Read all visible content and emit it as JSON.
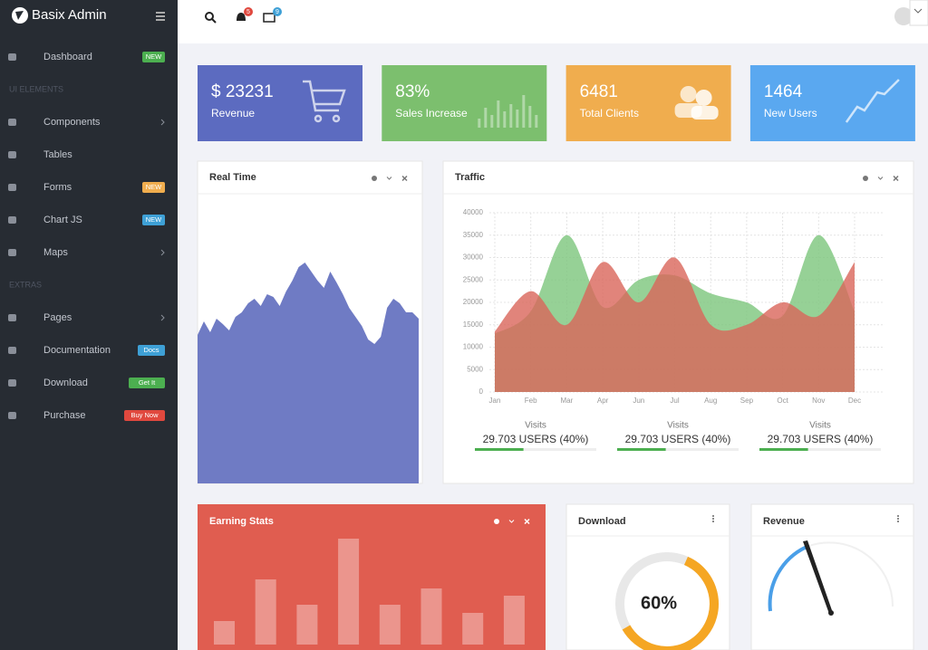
{
  "sidebar": {
    "brand": "Basix Admin",
    "items": [
      {
        "label": "Dashboard",
        "badge": "NEW",
        "badge_color": "#4caf50"
      },
      {
        "heading": "UI ELEMENTS"
      },
      {
        "label": "Components",
        "submenu": true
      },
      {
        "label": "Tables"
      },
      {
        "label": "Forms",
        "badge": "NEW",
        "badge_color": "#f0ad4e"
      },
      {
        "label": "Chart JS",
        "badge": "NEW",
        "badge_color": "#3ea0d6"
      },
      {
        "label": "Maps",
        "submenu": true
      },
      {
        "heading": "EXTRAS"
      },
      {
        "label": "Pages",
        "submenu": true
      },
      {
        "label": "Documentation",
        "badge": "Docs",
        "badge_color": "#3ea0d6"
      },
      {
        "label": "Download",
        "badge": "Get It",
        "badge_color": "#4caf50"
      },
      {
        "label": "Purchase",
        "badge": "Buy Now",
        "badge_color": "#e0483e"
      }
    ]
  },
  "topbar": {
    "notifications": "5",
    "messages": "9"
  },
  "cards": [
    {
      "value": "$ 23231",
      "label": "Revenue",
      "color": "#5c6bc0"
    },
    {
      "value": "83%",
      "label": "Sales Increase",
      "color": "#7cbf6e"
    },
    {
      "value": "6481",
      "label": "Total Clients",
      "color": "#f0ad4e"
    },
    {
      "value": "1464",
      "label": "New Users",
      "color": "#5aa8f0"
    }
  ],
  "realtime": {
    "title": "Real Time",
    "color": "#6f7bc4",
    "values": [
      164,
      179,
      167,
      182,
      176,
      169,
      184,
      189,
      199,
      204,
      196,
      209,
      206,
      196,
      212,
      224,
      239,
      244,
      234,
      224,
      216,
      234,
      222,
      209,
      194,
      184,
      174,
      159,
      154,
      162,
      194,
      204,
      199,
      189,
      189,
      182
    ]
  },
  "traffic": {
    "title": "Traffic",
    "categories": [
      "Jan",
      "Feb",
      "Mar",
      "Apr",
      "Jun",
      "Jul",
      "Aug",
      "Sep",
      "Oct",
      "Nov",
      "Dec"
    ],
    "ylim": [
      0,
      40000
    ],
    "yticks": [
      0,
      5000,
      10000,
      15000,
      20000,
      25000,
      30000,
      35000,
      40000
    ],
    "grid": true,
    "series": [
      {
        "color": "#7cc67c",
        "values": [
          13000,
          18000,
          35000,
          19000,
          25000,
          26000,
          22000,
          20000,
          17000,
          35000,
          18000
        ]
      },
      {
        "color": "#d9655a",
        "values": [
          13500,
          22500,
          15000,
          29000,
          20000,
          30000,
          15000,
          15000,
          20000,
          17000,
          29000
        ]
      }
    ],
    "stats": [
      {
        "label": "Visits",
        "value": "29.703 USERS (40%)",
        "progress": 40
      },
      {
        "label": "Visits",
        "value": "29.703 USERS (40%)",
        "progress": 40
      },
      {
        "label": "Visits",
        "value": "29.703 USERS (40%)",
        "progress": 40
      }
    ]
  },
  "earning": {
    "title": "Earning Stats",
    "values": [
      26,
      72,
      44,
      117,
      44,
      62,
      35,
      54
    ]
  },
  "download": {
    "title": "Download",
    "value": 60,
    "value_label": "60%",
    "color": "#f5a623"
  },
  "revenue": {
    "title": "Revenue"
  }
}
